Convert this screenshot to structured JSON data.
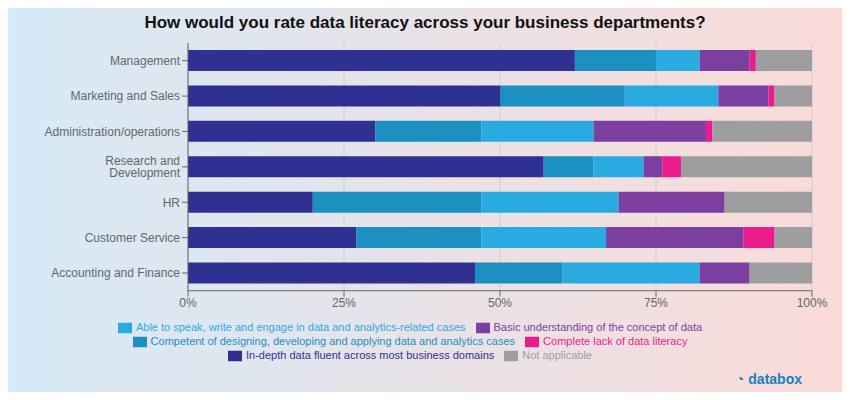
{
  "chart_data": {
    "type": "bar",
    "orientation": "horizontal",
    "stacked": true,
    "title": "How would you rate data literacy across your business departments?",
    "categories": [
      "Management",
      "Marketing and Sales",
      "Administration/operations",
      "Research and Development",
      "HR",
      "Customer Service",
      "Accounting and Finance"
    ],
    "series": [
      {
        "name": "In-depth data fluent across most business domains",
        "color": "#2E3192",
        "values": [
          62,
          50,
          30,
          57,
          20,
          27,
          46
        ]
      },
      {
        "name": "Competent of designing, developing and applying data and analytics cases",
        "color": "#1C8FC1",
        "values": [
          13,
          20,
          17,
          8,
          27,
          20,
          14
        ]
      },
      {
        "name": "Able to speak, write and engage in data and analytics-related cases",
        "color": "#29ABE2",
        "values": [
          7,
          15,
          18,
          8,
          22,
          20,
          22
        ]
      },
      {
        "name": "Basic understanding of the concept of data",
        "color": "#7B3FA0",
        "values": [
          8,
          8,
          18,
          3,
          17,
          22,
          8
        ]
      },
      {
        "name": "Complete lack of data literacy",
        "color": "#E91E8C",
        "values": [
          1,
          1,
          1,
          3,
          0,
          5,
          0
        ]
      },
      {
        "name": "Not applicable",
        "color": "#9E9EA0",
        "values": [
          9,
          6,
          16,
          21,
          14,
          6,
          10
        ]
      }
    ],
    "xlim": [
      0,
      100
    ],
    "xticks": [
      {
        "value": 0,
        "label": "0%"
      },
      {
        "value": 25,
        "label": "25%"
      },
      {
        "value": 50,
        "label": "50%"
      },
      {
        "value": 75,
        "label": "75%"
      },
      {
        "value": 100,
        "label": "100%"
      }
    ],
    "grid": true,
    "legend": "bottom",
    "annotations": [
      {
        "text": "◔",
        "color": "#1A7FC1"
      },
      {
        "text": "databox",
        "color": "#1A7FC1"
      }
    ]
  }
}
